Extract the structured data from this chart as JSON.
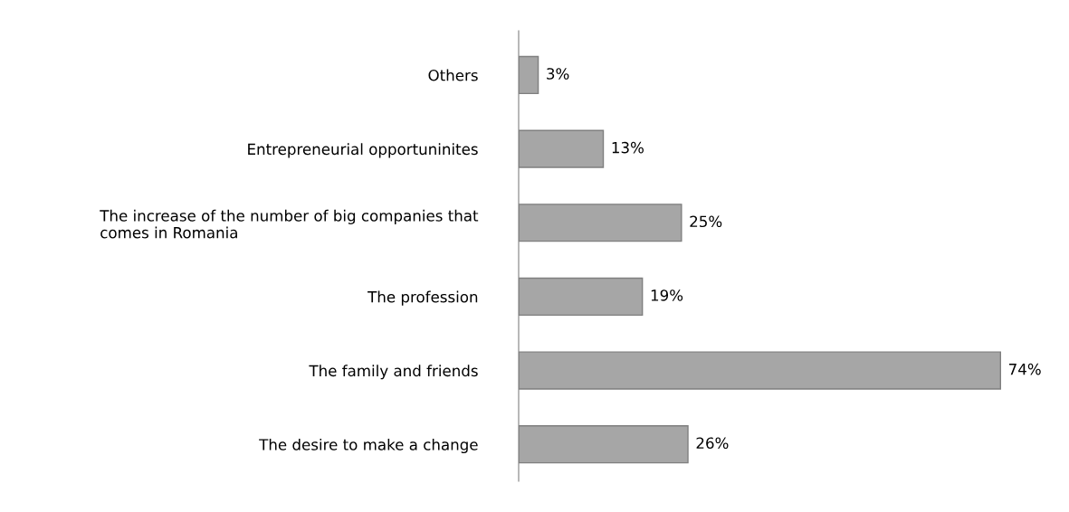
{
  "chart_data": {
    "type": "bar",
    "orientation": "horizontal",
    "categories": [
      "Others",
      "Entrepreneurial opportuninites",
      "The increase of the number of big companies that\ncomes in Romania",
      "The profession",
      "The family and friends",
      "The desire to make a change"
    ],
    "values": [
      3,
      13,
      25,
      19,
      74,
      26
    ],
    "value_labels": [
      "3%",
      "13%",
      "25%",
      "19%",
      "74%",
      "26%"
    ],
    "color": "#a6a6a6",
    "grid": false,
    "legend": false
  }
}
